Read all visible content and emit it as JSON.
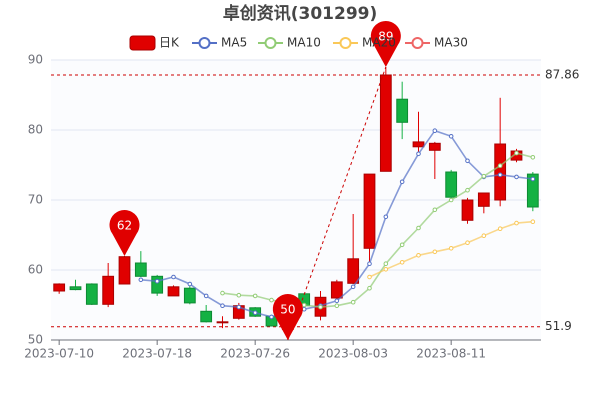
{
  "chart_data": {
    "type": "candlestick",
    "title": "卓创资讯(301299)",
    "categories": [
      "2023-07-10",
      null,
      null,
      null,
      null,
      null,
      "2023-07-18",
      null,
      null,
      null,
      null,
      null,
      "2023-07-26",
      null,
      null,
      null,
      null,
      null,
      "2023-08-03",
      null,
      null,
      null,
      null,
      null,
      "2023-08-11",
      null,
      null,
      null,
      null,
      null
    ],
    "candles": {
      "name": "日K",
      "up_color": "#e00000",
      "down_color": "#14b143",
      "open": [
        57.0,
        57.6,
        58.0,
        55.1,
        58.0,
        61.0,
        59.1,
        56.3,
        57.4,
        54.1,
        52.5,
        53.1,
        54.6,
        53.4,
        51.5,
        56.6,
        53.4,
        56.0,
        58.1,
        63.1,
        74.1,
        84.4,
        77.6,
        77.1,
        74.0,
        67.1,
        69.1,
        70.0,
        75.7,
        73.7
      ],
      "close": [
        58.0,
        57.2,
        55.1,
        59.1,
        61.9,
        59.1,
        56.7,
        57.6,
        55.3,
        52.6,
        52.6,
        54.9,
        53.4,
        52.0,
        55.7,
        54.9,
        56.1,
        58.3,
        61.6,
        73.7,
        87.86,
        81.1,
        78.3,
        78.1,
        70.4,
        70.0,
        71.0,
        78.0,
        77.0,
        69.0
      ],
      "low": [
        56.6,
        57.1,
        55.0,
        54.7,
        58.0,
        59.0,
        56.3,
        56.3,
        55.1,
        52.5,
        51.7,
        52.9,
        53.3,
        52.0,
        50,
        54.7,
        52.8,
        55.7,
        58.0,
        61.1,
        74.1,
        78.7,
        76.9,
        73.0,
        70.1,
        66.6,
        68.1,
        69.1,
        75.4,
        68.4
      ],
      "high": [
        58.1,
        58.6,
        58.1,
        61.0,
        62,
        62.7,
        59.3,
        57.8,
        58.3,
        55.0,
        53.4,
        55.3,
        54.7,
        53.6,
        56.2,
        56.6,
        57.0,
        58.6,
        68.0,
        73.7,
        89,
        86.9,
        82.6,
        78.3,
        74.3,
        70.3,
        71.0,
        84.6,
        77.3,
        74.0
      ]
    },
    "series": [
      {
        "name": "MA5",
        "color": "#5470c6",
        "values": [
          null,
          null,
          null,
          null,
          null,
          58.6,
          58.4,
          59.0,
          58.0,
          56.3,
          54.9,
          54.7,
          53.9,
          53.3,
          54.1,
          54.4,
          54.9,
          55.6,
          57.6,
          60.9,
          67.6,
          72.6,
          76.6,
          79.9,
          79.1,
          75.6,
          73.3,
          73.6,
          73.3,
          73.0
        ]
      },
      {
        "name": "MA10",
        "color": "#91cc75",
        "values": [
          null,
          null,
          null,
          null,
          null,
          null,
          null,
          null,
          null,
          null,
          56.7,
          56.4,
          56.3,
          55.7,
          55.3,
          55.0,
          54.7,
          54.9,
          55.4,
          57.4,
          60.9,
          63.6,
          66.0,
          68.6,
          70.0,
          71.4,
          73.4,
          74.9,
          76.7,
          76.1
        ]
      },
      {
        "name": "MA20",
        "color": "#fac858",
        "values": [
          null,
          null,
          null,
          null,
          null,
          null,
          null,
          null,
          null,
          null,
          null,
          null,
          null,
          null,
          null,
          null,
          null,
          null,
          null,
          59.0,
          60.1,
          61.1,
          62.1,
          62.6,
          63.1,
          63.9,
          64.9,
          65.9,
          66.7,
          66.9
        ]
      },
      {
        "name": "MA30",
        "color": "#ee6666",
        "values": [
          null,
          null,
          null,
          null,
          null,
          null,
          null,
          null,
          null,
          null,
          null,
          null,
          null,
          null,
          null,
          null,
          null,
          null,
          null,
          null,
          null,
          null,
          null,
          null,
          null,
          null,
          null,
          null,
          null,
          null
        ]
      }
    ],
    "mark_points": [
      62,
      89,
      50
    ],
    "mark_lines": [
      87.86,
      51.9
    ],
    "ylim": [
      50,
      90
    ],
    "yticks": [
      50,
      60,
      70,
      80,
      90
    ],
    "grid": true
  }
}
